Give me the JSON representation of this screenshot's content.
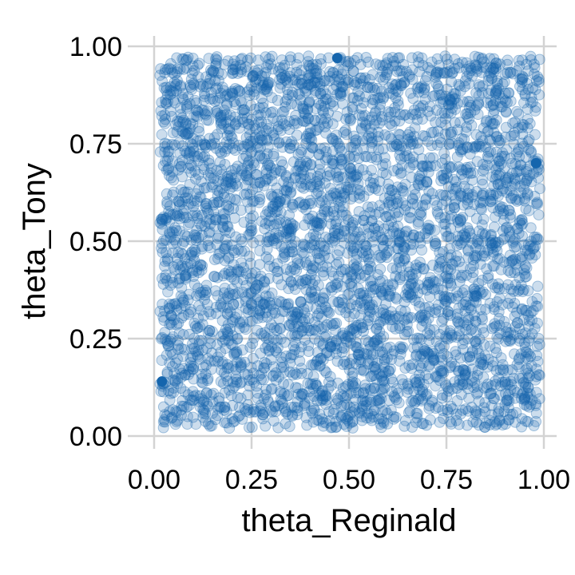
{
  "chart_data": {
    "type": "scatter",
    "title": "",
    "xlabel": "theta_Reginald",
    "ylabel": "theta_Tony",
    "xlim": [
      0.0,
      1.0
    ],
    "ylim": [
      0.0,
      1.0
    ],
    "x_ticks": [
      "0.00",
      "0.25",
      "0.50",
      "0.75",
      "1.00"
    ],
    "y_ticks": [
      "0.00",
      "0.25",
      "0.50",
      "0.75",
      "1.00"
    ],
    "grid": true,
    "point_color": "#1565ad",
    "grid_color": "#d3d3d3",
    "n_points": 4000,
    "distribution": "uniform random draws across [0,1] x [0,1], drawn semi-transparent",
    "highlighted_points": [
      {
        "x": 0.47,
        "y": 0.97
      },
      {
        "x": 0.98,
        "y": 0.7
      },
      {
        "x": 0.02,
        "y": 0.14
      }
    ]
  }
}
